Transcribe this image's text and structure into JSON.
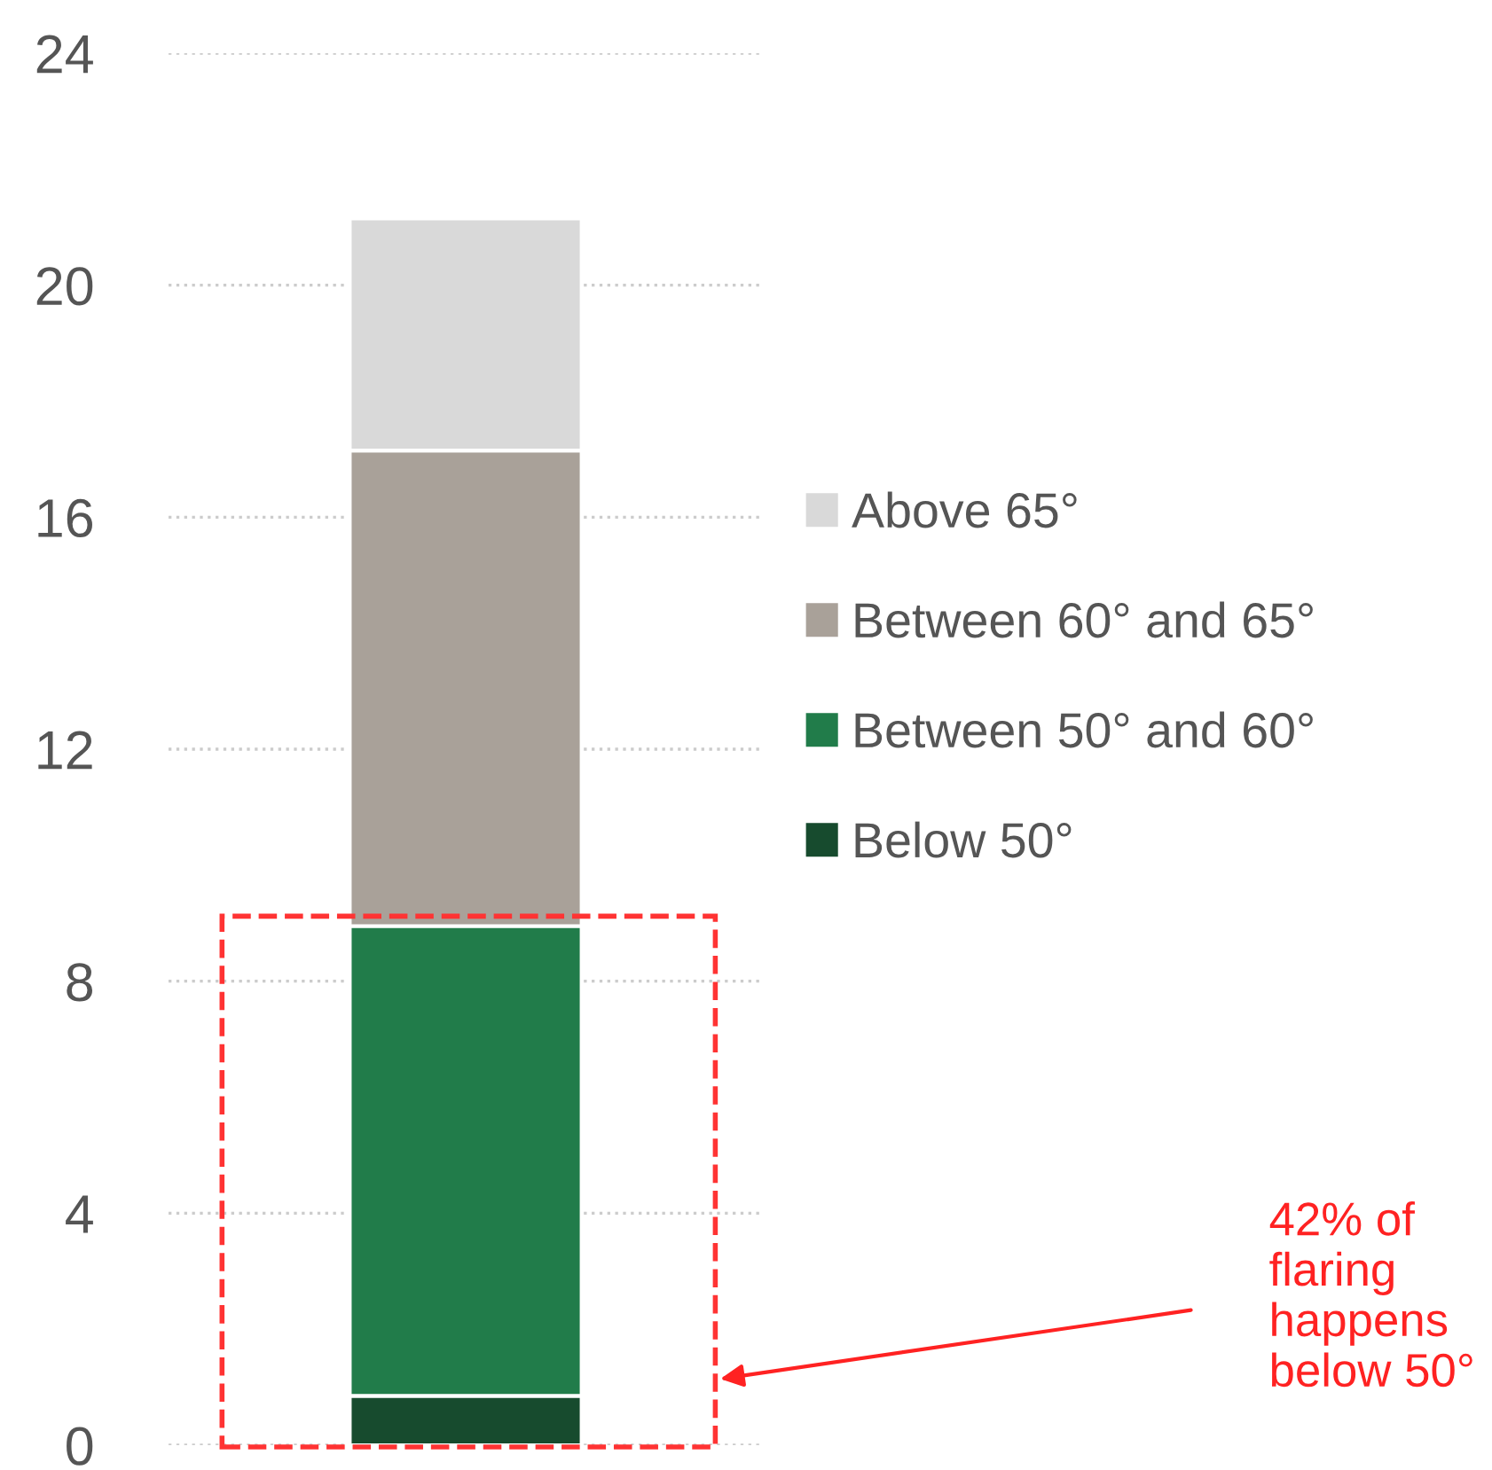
{
  "chart_data": {
    "type": "bar",
    "stacked": true,
    "categories": [
      null
    ],
    "series": [
      {
        "name": "Below 50°",
        "color": "#174b2e",
        "values": [
          0.85
        ]
      },
      {
        "name": "Between 50° and 60°",
        "color": "#217c4a",
        "values": [
          8.1
        ]
      },
      {
        "name": "Between 60° and 65°",
        "color": "#a9a199",
        "values": [
          8.2
        ]
      },
      {
        "name": "Above 65°",
        "color": "#d9d9d9",
        "values": [
          4.0
        ]
      }
    ],
    "ylim": [
      0,
      24
    ],
    "yticks": [
      0,
      4,
      8,
      12,
      16,
      20,
      24
    ],
    "grid": "y",
    "legend": "right",
    "annotations": [
      "42% of flaring happens below 50°"
    ]
  }
}
